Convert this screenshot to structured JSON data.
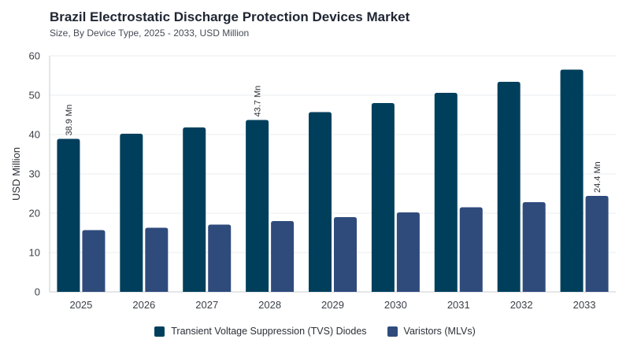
{
  "title": "Brazil Electrostatic Discharge Protection Devices Market",
  "subtitle": "Size, By Device Type, 2025 - 2033, USD Million",
  "colors": {
    "series1": "#003f5c",
    "series2": "#2f4b7c",
    "grid": "#e9ecef",
    "axis": "#c8cdd3"
  },
  "chart_data": {
    "type": "bar",
    "categories": [
      "2025",
      "2026",
      "2027",
      "2028",
      "2029",
      "2030",
      "2031",
      "2032",
      "2033"
    ],
    "series": [
      {
        "name": "Transient Voltage Suppression (TVS) Diodes",
        "values": [
          38.9,
          40.2,
          41.8,
          43.7,
          45.7,
          48.0,
          50.6,
          53.4,
          56.5
        ]
      },
      {
        "name": "Varistors (MLVs)",
        "values": [
          15.7,
          16.3,
          17.1,
          18.0,
          19.0,
          20.2,
          21.5,
          22.8,
          24.4
        ]
      }
    ],
    "data_labels": [
      {
        "series": 0,
        "index": 0,
        "text": "38.9 Mn"
      },
      {
        "series": 0,
        "index": 3,
        "text": "43.7 Mn"
      },
      {
        "series": 1,
        "index": 8,
        "text": "24.4 Mn"
      }
    ],
    "xlabel": "",
    "ylabel": "USD Million",
    "ylim": [
      0,
      60
    ],
    "yticks": [
      0,
      10,
      20,
      30,
      40,
      50,
      60
    ],
    "grid": true,
    "legend_position": "bottom"
  }
}
